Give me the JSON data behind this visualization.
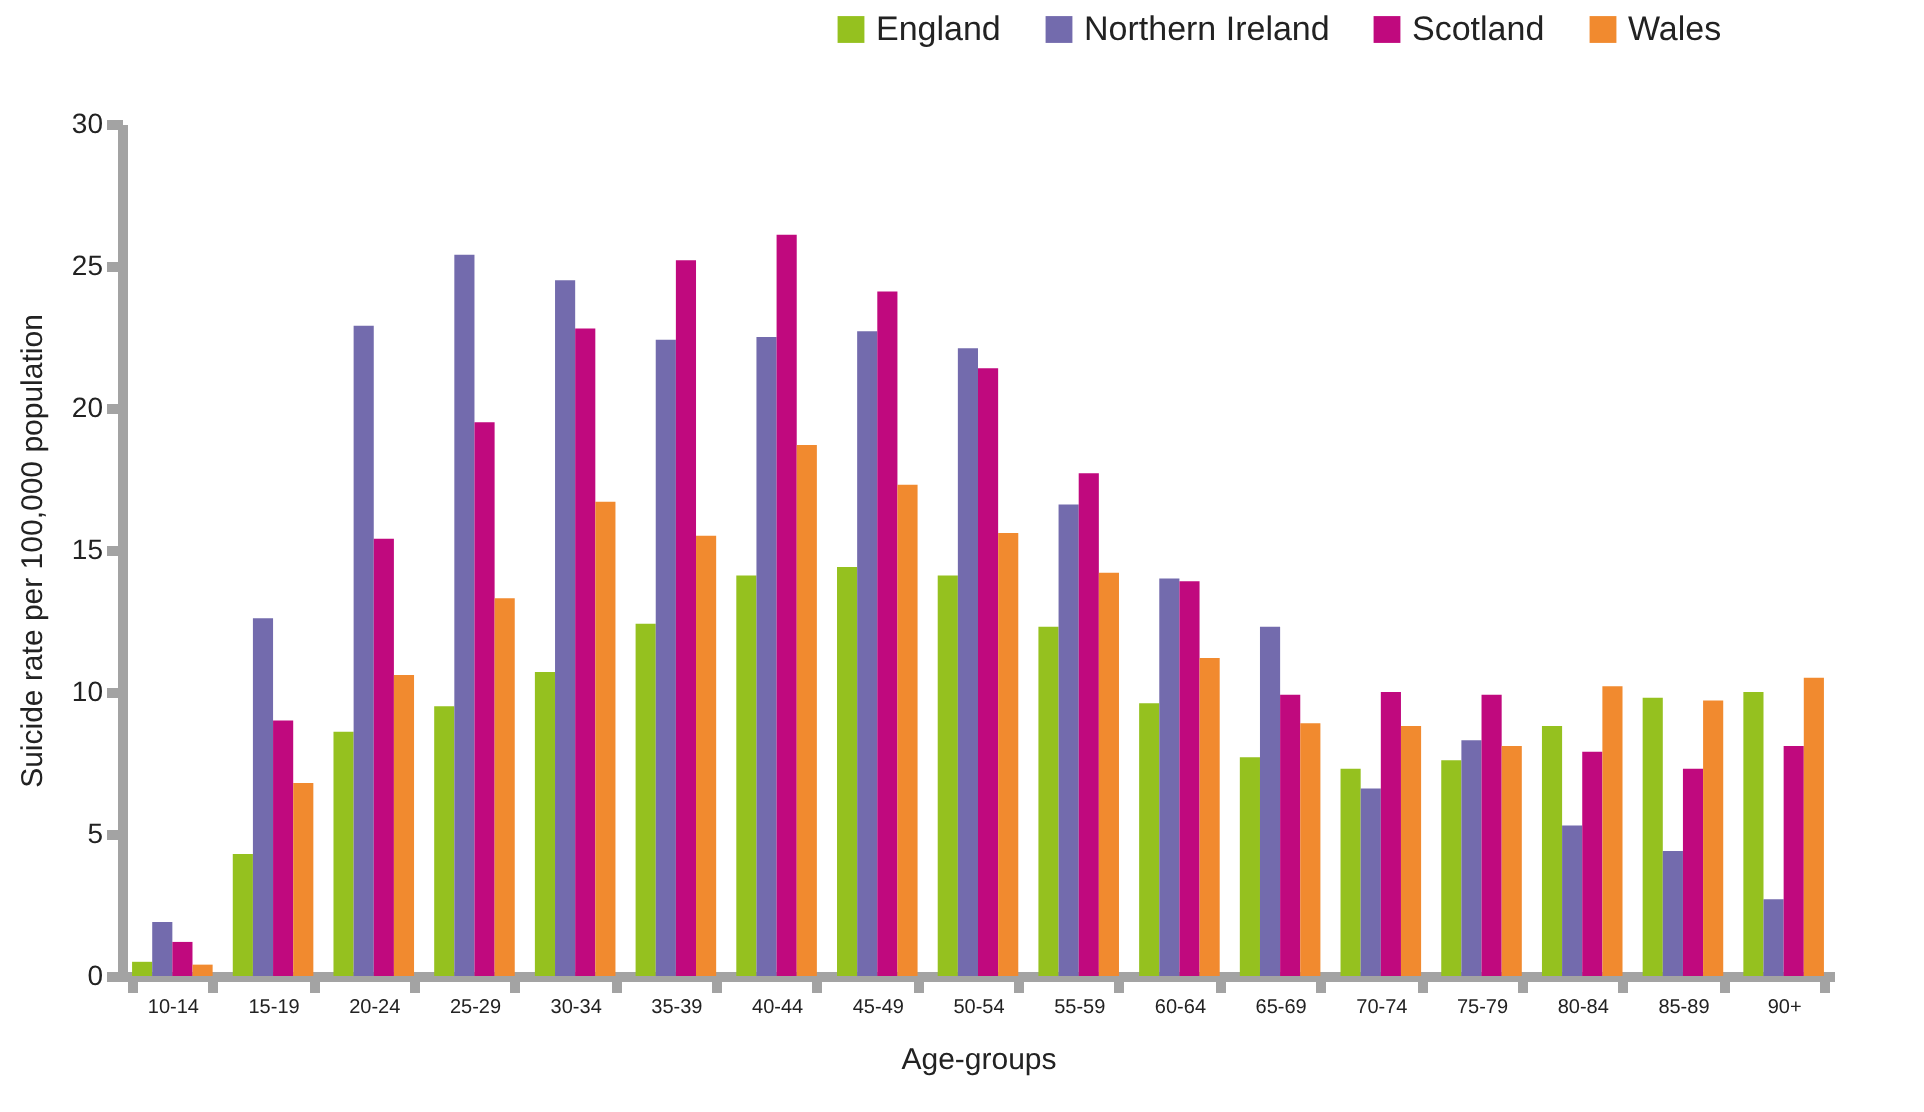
{
  "chart_data": {
    "type": "bar",
    "xlabel": "Age-groups",
    "ylabel": "Suicide rate per 100,000 population",
    "categories": [
      "10-14",
      "15-19",
      "20-24",
      "25-29",
      "30-34",
      "35-39",
      "40-44",
      "45-49",
      "50-54",
      "55-59",
      "60-64",
      "65-69",
      "70-74",
      "75-79",
      "80-84",
      "85-89",
      "90+"
    ],
    "series": [
      {
        "name": "England",
        "color": "#95c11f",
        "values": [
          0.5,
          4.3,
          8.6,
          9.5,
          10.7,
          12.4,
          14.1,
          14.4,
          14.1,
          12.3,
          9.6,
          7.7,
          7.3,
          7.6,
          8.8,
          9.8,
          10.0
        ]
      },
      {
        "name": "Northern Ireland",
        "color": "#736bad",
        "values": [
          1.9,
          12.6,
          22.9,
          25.4,
          24.5,
          22.4,
          22.5,
          22.7,
          22.1,
          16.6,
          14.0,
          12.3,
          6.6,
          8.3,
          5.3,
          4.4,
          2.7
        ]
      },
      {
        "name": "Scotland",
        "color": "#c0097e",
        "values": [
          1.2,
          9.0,
          15.4,
          19.5,
          22.8,
          25.2,
          26.1,
          24.1,
          21.4,
          17.7,
          13.9,
          9.9,
          10.0,
          9.9,
          7.9,
          7.3,
          8.1
        ]
      },
      {
        "name": "Wales",
        "color": "#f18a2f",
        "values": [
          0.4,
          6.8,
          10.6,
          13.3,
          16.7,
          15.5,
          18.7,
          17.3,
          15.6,
          14.2,
          11.2,
          8.9,
          8.8,
          8.1,
          10.2,
          9.7,
          10.5
        ]
      }
    ],
    "ylim": [
      0,
      30
    ],
    "yticks": [
      0,
      5,
      10,
      15,
      20,
      25,
      30
    ],
    "grid": false,
    "legend": "top right"
  }
}
